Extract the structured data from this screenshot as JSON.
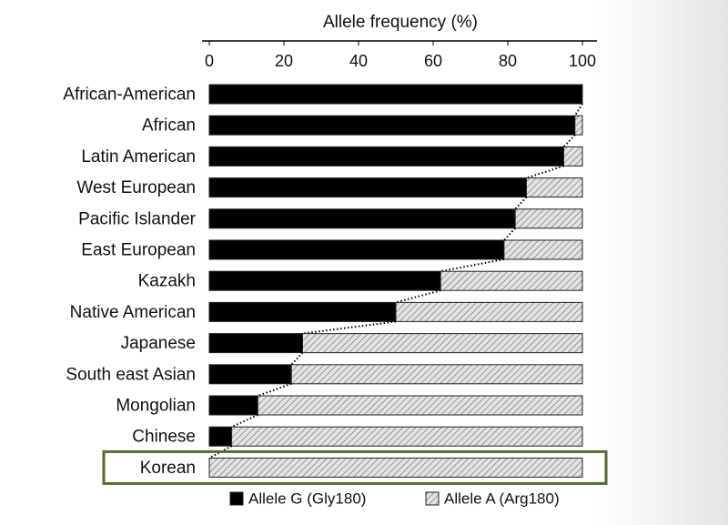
{
  "chart_data": {
    "type": "bar",
    "orientation": "horizontal",
    "stacked": true,
    "title": "Allele frequency (%)",
    "categories": [
      "African-American",
      "African",
      "Latin American",
      "West European",
      "Pacific Islander",
      "East European",
      "Kazakh",
      "Native American",
      "Japanese",
      "South east Asian",
      "Mongolian",
      "Chinese",
      "Korean"
    ],
    "series": [
      {
        "name": "Allele G (Gly180)",
        "color": "#000000",
        "values": [
          100,
          98,
          95,
          85,
          82,
          79,
          62,
          50,
          25,
          22,
          13,
          6,
          0
        ]
      },
      {
        "name": "Allele A (Arg180)",
        "color": "#d9d9d9",
        "pattern": "hatch",
        "values": [
          0,
          2,
          5,
          15,
          18,
          21,
          38,
          50,
          75,
          78,
          87,
          94,
          100
        ]
      }
    ],
    "xlim": [
      0,
      100
    ],
    "xticks": [
      0,
      20,
      40,
      60,
      80,
      100
    ],
    "axis_position": "top",
    "connector": "dotted"
  }
}
